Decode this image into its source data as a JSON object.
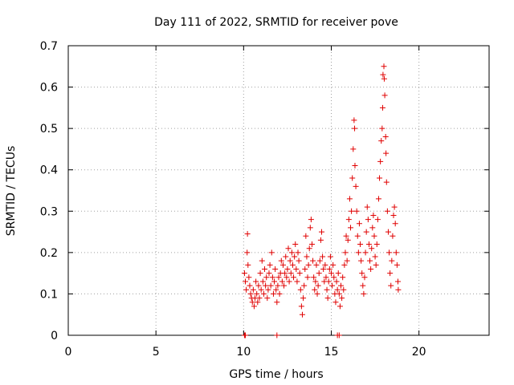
{
  "chart_data": {
    "type": "scatter",
    "title": "Day 111 of 2022, SRMTID for receiver pove",
    "xlabel": "GPS time / hours",
    "ylabel": "SRMTID / TECUs",
    "xlim": [
      0,
      24
    ],
    "ylim": [
      0,
      0.7
    ],
    "xticks": [
      0,
      5,
      10,
      15,
      20
    ],
    "yticks": [
      0,
      0.1,
      0.2,
      0.3,
      0.4,
      0.5,
      0.6,
      0.7
    ],
    "xtick_labels": [
      "0",
      "5",
      "10",
      "15",
      "20"
    ],
    "ytick_labels": [
      "0",
      "0.1",
      "0.2",
      "0.3",
      "0.4",
      "0.5",
      "0.6",
      "0.7"
    ],
    "grid": true,
    "marker": "plus",
    "color": "#e00000",
    "series": [
      {
        "name": "SRMTID",
        "points": [
          [
            10.05,
            0.0
          ],
          [
            10.1,
            0.0
          ],
          [
            11.9,
            0.0
          ],
          [
            15.35,
            0.0
          ],
          [
            15.45,
            0.0
          ],
          [
            10.05,
            0.15
          ],
          [
            10.1,
            0.13
          ],
          [
            10.15,
            0.11
          ],
          [
            10.2,
            0.2
          ],
          [
            10.22,
            0.245
          ],
          [
            10.25,
            0.17
          ],
          [
            10.3,
            0.14
          ],
          [
            10.35,
            0.12
          ],
          [
            10.4,
            0.1
          ],
          [
            10.45,
            0.09
          ],
          [
            10.5,
            0.08
          ],
          [
            10.55,
            0.11
          ],
          [
            10.6,
            0.07
          ],
          [
            10.65,
            0.09
          ],
          [
            10.7,
            0.13
          ],
          [
            10.75,
            0.1
          ],
          [
            10.8,
            0.08
          ],
          [
            10.85,
            0.12
          ],
          [
            10.9,
            0.09
          ],
          [
            10.95,
            0.15
          ],
          [
            11.0,
            0.11
          ],
          [
            11.05,
            0.18
          ],
          [
            11.1,
            0.13
          ],
          [
            11.15,
            0.1
          ],
          [
            11.2,
            0.16
          ],
          [
            11.25,
            0.12
          ],
          [
            11.3,
            0.14
          ],
          [
            11.35,
            0.09
          ],
          [
            11.4,
            0.11
          ],
          [
            11.45,
            0.15
          ],
          [
            11.5,
            0.17
          ],
          [
            11.55,
            0.12
          ],
          [
            11.6,
            0.2
          ],
          [
            11.65,
            0.14
          ],
          [
            11.7,
            0.1
          ],
          [
            11.75,
            0.13
          ],
          [
            11.8,
            0.16
          ],
          [
            11.85,
            0.11
          ],
          [
            11.9,
            0.08
          ],
          [
            11.95,
            0.12
          ],
          [
            12.0,
            0.14
          ],
          [
            12.05,
            0.1
          ],
          [
            12.1,
            0.15
          ],
          [
            12.15,
            0.18
          ],
          [
            12.2,
            0.13
          ],
          [
            12.25,
            0.17
          ],
          [
            12.3,
            0.12
          ],
          [
            12.35,
            0.15
          ],
          [
            12.4,
            0.19
          ],
          [
            12.45,
            0.14
          ],
          [
            12.5,
            0.16
          ],
          [
            12.55,
            0.21
          ],
          [
            12.6,
            0.13
          ],
          [
            12.65,
            0.18
          ],
          [
            12.7,
            0.15
          ],
          [
            12.75,
            0.2
          ],
          [
            12.8,
            0.17
          ],
          [
            12.85,
            0.14
          ],
          [
            12.9,
            0.19
          ],
          [
            12.95,
            0.22
          ],
          [
            13.0,
            0.16
          ],
          [
            13.05,
            0.13
          ],
          [
            13.1,
            0.2
          ],
          [
            13.15,
            0.18
          ],
          [
            13.2,
            0.15
          ],
          [
            13.25,
            0.11
          ],
          [
            13.3,
            0.07
          ],
          [
            13.35,
            0.05
          ],
          [
            13.4,
            0.09
          ],
          [
            13.45,
            0.12
          ],
          [
            13.5,
            0.16
          ],
          [
            13.55,
            0.24
          ],
          [
            13.6,
            0.19
          ],
          [
            13.65,
            0.14
          ],
          [
            13.7,
            0.17
          ],
          [
            13.75,
            0.21
          ],
          [
            13.8,
            0.26
          ],
          [
            13.85,
            0.28
          ],
          [
            13.9,
            0.22
          ],
          [
            13.95,
            0.18
          ],
          [
            14.0,
            0.14
          ],
          [
            14.05,
            0.11
          ],
          [
            14.1,
            0.13
          ],
          [
            14.15,
            0.17
          ],
          [
            14.2,
            0.1
          ],
          [
            14.25,
            0.12
          ],
          [
            14.3,
            0.15
          ],
          [
            14.35,
            0.18
          ],
          [
            14.4,
            0.23
          ],
          [
            14.45,
            0.25
          ],
          [
            14.5,
            0.19
          ],
          [
            14.55,
            0.16
          ],
          [
            14.6,
            0.13
          ],
          [
            14.65,
            0.17
          ],
          [
            14.7,
            0.14
          ],
          [
            14.75,
            0.11
          ],
          [
            14.8,
            0.09
          ],
          [
            14.85,
            0.13
          ],
          [
            14.9,
            0.16
          ],
          [
            14.95,
            0.19
          ],
          [
            15.0,
            0.15
          ],
          [
            15.05,
            0.12
          ],
          [
            15.1,
            0.17
          ],
          [
            15.15,
            0.14
          ],
          [
            15.2,
            0.1
          ],
          [
            15.25,
            0.08
          ],
          [
            15.3,
            0.13
          ],
          [
            15.35,
            0.11
          ],
          [
            15.4,
            0.15
          ],
          [
            15.45,
            0.1
          ],
          [
            15.5,
            0.07
          ],
          [
            15.55,
            0.12
          ],
          [
            15.6,
            0.09
          ],
          [
            15.65,
            0.14
          ],
          [
            15.7,
            0.11
          ],
          [
            15.75,
            0.17
          ],
          [
            15.8,
            0.2
          ],
          [
            15.85,
            0.24
          ],
          [
            15.9,
            0.18
          ],
          [
            15.95,
            0.23
          ],
          [
            16.0,
            0.28
          ],
          [
            16.05,
            0.33
          ],
          [
            16.1,
            0.26
          ],
          [
            16.15,
            0.3
          ],
          [
            16.2,
            0.38
          ],
          [
            16.25,
            0.45
          ],
          [
            16.3,
            0.52
          ],
          [
            16.33,
            0.5
          ],
          [
            16.35,
            0.41
          ],
          [
            16.4,
            0.36
          ],
          [
            16.45,
            0.3
          ],
          [
            16.5,
            0.24
          ],
          [
            16.55,
            0.2
          ],
          [
            16.6,
            0.27
          ],
          [
            16.65,
            0.22
          ],
          [
            16.7,
            0.18
          ],
          [
            16.75,
            0.15
          ],
          [
            16.8,
            0.12
          ],
          [
            16.85,
            0.1
          ],
          [
            16.9,
            0.14
          ],
          [
            16.95,
            0.2
          ],
          [
            17.0,
            0.25
          ],
          [
            17.05,
            0.31
          ],
          [
            17.1,
            0.28
          ],
          [
            17.15,
            0.22
          ],
          [
            17.2,
            0.18
          ],
          [
            17.25,
            0.16
          ],
          [
            17.3,
            0.21
          ],
          [
            17.35,
            0.26
          ],
          [
            17.4,
            0.29
          ],
          [
            17.45,
            0.24
          ],
          [
            17.5,
            0.19
          ],
          [
            17.55,
            0.17
          ],
          [
            17.6,
            0.22
          ],
          [
            17.65,
            0.28
          ],
          [
            17.7,
            0.33
          ],
          [
            17.75,
            0.38
          ],
          [
            17.8,
            0.42
          ],
          [
            17.85,
            0.47
          ],
          [
            17.9,
            0.5
          ],
          [
            17.93,
            0.55
          ],
          [
            17.95,
            0.63
          ],
          [
            18.0,
            0.65
          ],
          [
            18.02,
            0.62
          ],
          [
            18.05,
            0.58
          ],
          [
            18.1,
            0.48
          ],
          [
            18.12,
            0.44
          ],
          [
            18.15,
            0.37
          ],
          [
            18.2,
            0.3
          ],
          [
            18.25,
            0.25
          ],
          [
            18.3,
            0.2
          ],
          [
            18.35,
            0.15
          ],
          [
            18.4,
            0.12
          ],
          [
            18.45,
            0.18
          ],
          [
            18.5,
            0.24
          ],
          [
            18.55,
            0.29
          ],
          [
            18.6,
            0.31
          ],
          [
            18.65,
            0.27
          ],
          [
            18.7,
            0.2
          ],
          [
            18.75,
            0.17
          ],
          [
            18.8,
            0.13
          ],
          [
            18.82,
            0.11
          ]
        ]
      }
    ]
  }
}
